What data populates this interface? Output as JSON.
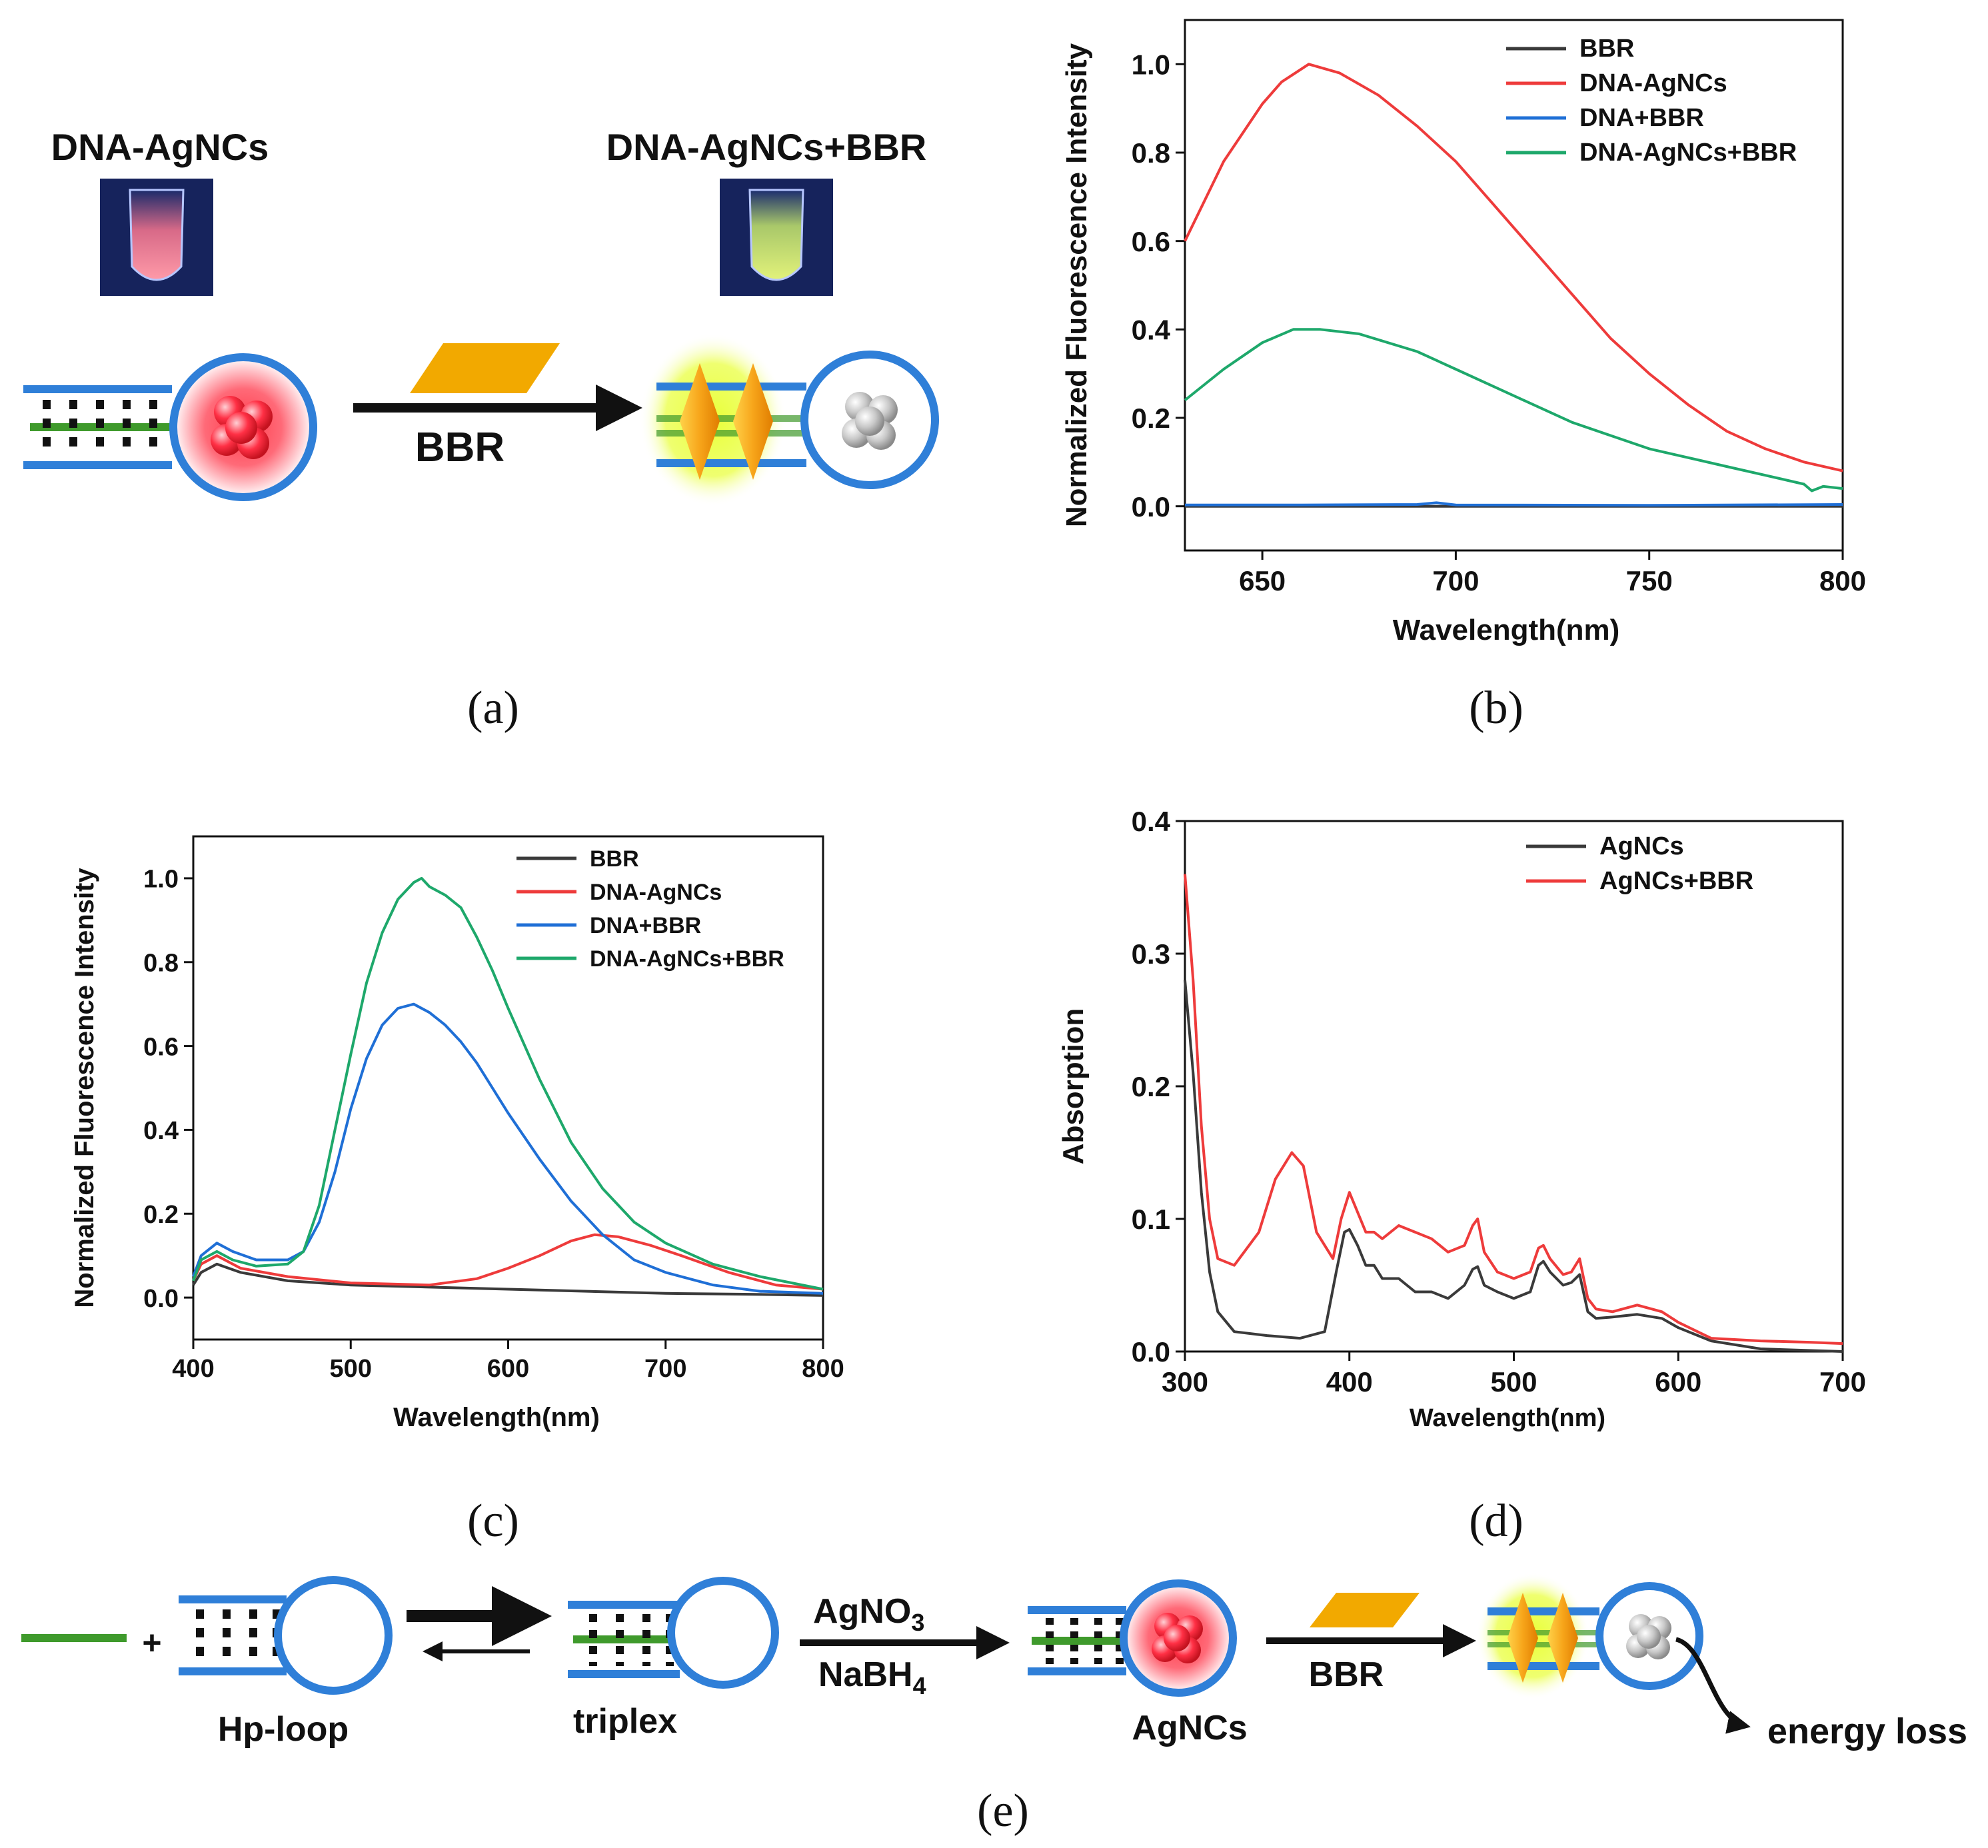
{
  "colors": {
    "black": "#3a3a3a",
    "red": "#ee3b3b",
    "blue": "#1f6fd6",
    "green": "#1ea86b",
    "dna_blue": "#2f7fd8",
    "strand_green": "#3f9a2c",
    "bbr_gold": "#f2a900"
  },
  "panel_a": {
    "label": "(a)",
    "left_title": "DNA-AgNCs",
    "right_title": "DNA-AgNCs+BBR",
    "arrow_label": "BBR"
  },
  "panel_e": {
    "label": "(e)",
    "hp_loop": "Hp-loop",
    "triplex": "triplex",
    "reagent_top_main": "AgNO",
    "reagent_top_sub": "3",
    "reagent_bottom_main": "NaBH",
    "reagent_bottom_sub": "4",
    "agncs": "AgNCs",
    "bbr": "BBR",
    "energy_loss": "energy loss",
    "plus": "+"
  },
  "chart_data": [
    {
      "id": "b",
      "panel_label": "(b)",
      "type": "line",
      "xlabel": "Wavelength(nm)",
      "ylabel": "Normalized Fluorescence Intensity",
      "xlim": [
        630,
        800
      ],
      "ylim": [
        -0.1,
        1.1
      ],
      "xticks": [
        650,
        700,
        750,
        800
      ],
      "yticks": [
        0.0,
        0.2,
        0.4,
        0.6,
        0.8,
        1.0
      ],
      "tick_labels_x": [
        "650",
        "700",
        "750",
        "800"
      ],
      "tick_labels_y": [
        "0.0",
        "0.2",
        "0.4",
        "0.6",
        "0.8",
        "1.0"
      ],
      "legend_position": "top-right",
      "series": [
        {
          "name": "BBR",
          "color": "#3a3a3a",
          "x": [
            630,
            660,
            700,
            750,
            800
          ],
          "y": [
            0.0,
            0.0,
            0.0,
            0.0,
            0.0
          ]
        },
        {
          "name": "DNA-AgNCs",
          "color": "#ee3b3b",
          "x": [
            630,
            640,
            650,
            655,
            662,
            670,
            680,
            690,
            700,
            710,
            720,
            730,
            740,
            750,
            760,
            770,
            780,
            790,
            800
          ],
          "y": [
            0.6,
            0.78,
            0.91,
            0.96,
            1.0,
            0.98,
            0.93,
            0.86,
            0.78,
            0.68,
            0.58,
            0.48,
            0.38,
            0.3,
            0.23,
            0.17,
            0.13,
            0.1,
            0.08
          ]
        },
        {
          "name": "DNA+BBR",
          "color": "#1f6fd6",
          "x": [
            630,
            660,
            690,
            695,
            700,
            750,
            800
          ],
          "y": [
            0.003,
            0.003,
            0.004,
            0.008,
            0.003,
            0.002,
            0.004
          ]
        },
        {
          "name": "DNA-AgNCs+BBR",
          "color": "#1ea86b",
          "x": [
            630,
            640,
            650,
            658,
            665,
            675,
            690,
            700,
            710,
            720,
            730,
            740,
            750,
            760,
            770,
            780,
            790,
            792,
            795,
            800
          ],
          "y": [
            0.24,
            0.31,
            0.37,
            0.4,
            0.4,
            0.39,
            0.35,
            0.31,
            0.27,
            0.23,
            0.19,
            0.16,
            0.13,
            0.11,
            0.09,
            0.07,
            0.05,
            0.035,
            0.045,
            0.04
          ]
        }
      ]
    },
    {
      "id": "c",
      "panel_label": "(c)",
      "type": "line",
      "xlabel": "Wavelength(nm)",
      "ylabel": "Normalized Fluorescence Intensity",
      "xlim": [
        400,
        800
      ],
      "ylim": [
        -0.1,
        1.1
      ],
      "xticks": [
        400,
        500,
        600,
        700,
        800
      ],
      "yticks": [
        0.0,
        0.2,
        0.4,
        0.6,
        0.8,
        1.0
      ],
      "tick_labels_x": [
        "400",
        "500",
        "600",
        "700",
        "800"
      ],
      "tick_labels_y": [
        "0.0",
        "0.2",
        "0.4",
        "0.6",
        "0.8",
        "1.0"
      ],
      "legend_position": "top-right",
      "series": [
        {
          "name": "BBR",
          "color": "#3a3a3a",
          "x": [
            400,
            405,
            415,
            430,
            460,
            500,
            550,
            600,
            650,
            700,
            750,
            800
          ],
          "y": [
            0.03,
            0.06,
            0.08,
            0.06,
            0.04,
            0.03,
            0.025,
            0.02,
            0.015,
            0.01,
            0.008,
            0.005
          ]
        },
        {
          "name": "DNA-AgNCs",
          "color": "#ee3b3b",
          "x": [
            400,
            405,
            415,
            430,
            460,
            500,
            550,
            580,
            600,
            620,
            640,
            655,
            670,
            690,
            710,
            740,
            770,
            800
          ],
          "y": [
            0.04,
            0.08,
            0.1,
            0.07,
            0.05,
            0.035,
            0.03,
            0.045,
            0.07,
            0.1,
            0.135,
            0.15,
            0.145,
            0.125,
            0.1,
            0.06,
            0.03,
            0.02
          ]
        },
        {
          "name": "DNA+BBR",
          "color": "#1f6fd6",
          "x": [
            400,
            405,
            415,
            425,
            440,
            460,
            470,
            480,
            490,
            500,
            510,
            520,
            530,
            540,
            550,
            560,
            570,
            580,
            590,
            600,
            620,
            640,
            660,
            680,
            700,
            730,
            760,
            800
          ],
          "y": [
            0.05,
            0.1,
            0.13,
            0.11,
            0.09,
            0.09,
            0.11,
            0.18,
            0.3,
            0.45,
            0.57,
            0.65,
            0.69,
            0.7,
            0.68,
            0.65,
            0.61,
            0.56,
            0.5,
            0.44,
            0.33,
            0.23,
            0.15,
            0.09,
            0.06,
            0.03,
            0.015,
            0.01
          ]
        },
        {
          "name": "DNA-AgNCs+BBR",
          "color": "#1ea86b",
          "x": [
            400,
            405,
            415,
            425,
            440,
            460,
            470,
            480,
            490,
            500,
            510,
            520,
            530,
            540,
            545,
            550,
            560,
            570,
            580,
            590,
            600,
            620,
            640,
            660,
            680,
            700,
            730,
            760,
            800
          ],
          "y": [
            0.04,
            0.09,
            0.11,
            0.09,
            0.075,
            0.08,
            0.11,
            0.22,
            0.4,
            0.58,
            0.75,
            0.87,
            0.95,
            0.99,
            1.0,
            0.98,
            0.96,
            0.93,
            0.86,
            0.78,
            0.69,
            0.52,
            0.37,
            0.26,
            0.18,
            0.13,
            0.08,
            0.05,
            0.02
          ]
        }
      ]
    },
    {
      "id": "d",
      "panel_label": "(d)",
      "type": "line",
      "xlabel": "Wavelength(nm)",
      "ylabel": "Absorption",
      "xlim": [
        300,
        700
      ],
      "ylim": [
        0.0,
        0.4
      ],
      "xticks": [
        300,
        400,
        500,
        600,
        700
      ],
      "yticks": [
        0.0,
        0.1,
        0.2,
        0.3,
        0.4
      ],
      "tick_labels_x": [
        "300",
        "400",
        "500",
        "600",
        "700"
      ],
      "tick_labels_y": [
        "0.0",
        "0.1",
        "0.2",
        "0.3",
        "0.4"
      ],
      "legend_position": "top-right",
      "series": [
        {
          "name": "AgNCs",
          "color": "#3a3a3a",
          "x": [
            300,
            305,
            310,
            315,
            320,
            330,
            350,
            370,
            385,
            392,
            397,
            400,
            405,
            410,
            415,
            420,
            430,
            440,
            450,
            460,
            470,
            475,
            478,
            482,
            490,
            500,
            510,
            515,
            518,
            522,
            530,
            535,
            540,
            545,
            550,
            560,
            575,
            590,
            600,
            620,
            650,
            700
          ],
          "y": [
            0.28,
            0.21,
            0.12,
            0.06,
            0.03,
            0.015,
            0.012,
            0.01,
            0.015,
            0.06,
            0.09,
            0.092,
            0.08,
            0.065,
            0.065,
            0.055,
            0.055,
            0.045,
            0.045,
            0.04,
            0.05,
            0.062,
            0.064,
            0.05,
            0.045,
            0.04,
            0.045,
            0.065,
            0.068,
            0.06,
            0.05,
            0.052,
            0.058,
            0.03,
            0.025,
            0.026,
            0.028,
            0.025,
            0.018,
            0.008,
            0.002,
            0.0
          ]
        },
        {
          "name": "AgNCs+BBR",
          "color": "#ee3b3b",
          "x": [
            300,
            305,
            310,
            315,
            320,
            330,
            345,
            355,
            365,
            372,
            380,
            390,
            395,
            400,
            405,
            410,
            415,
            420,
            430,
            440,
            450,
            460,
            470,
            475,
            478,
            482,
            490,
            500,
            510,
            515,
            518,
            522,
            530,
            535,
            540,
            545,
            550,
            560,
            575,
            590,
            600,
            620,
            650,
            680,
            700
          ],
          "y": [
            0.36,
            0.28,
            0.17,
            0.1,
            0.07,
            0.065,
            0.09,
            0.13,
            0.15,
            0.14,
            0.09,
            0.07,
            0.1,
            0.12,
            0.105,
            0.09,
            0.09,
            0.085,
            0.095,
            0.09,
            0.085,
            0.075,
            0.08,
            0.095,
            0.1,
            0.075,
            0.06,
            0.055,
            0.06,
            0.078,
            0.08,
            0.07,
            0.058,
            0.06,
            0.07,
            0.04,
            0.032,
            0.03,
            0.035,
            0.03,
            0.022,
            0.01,
            0.008,
            0.007,
            0.006
          ]
        }
      ]
    }
  ]
}
